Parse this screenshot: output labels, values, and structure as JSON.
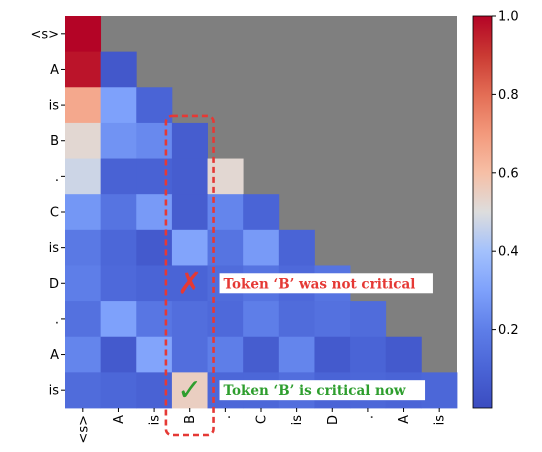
{
  "chart_data": {
    "type": "heatmap",
    "title": "",
    "xlabel": "",
    "ylabel": "",
    "tokens": [
      "<s>",
      "A",
      "is",
      "B",
      ".",
      "C",
      "is",
      "D",
      ".",
      "A",
      "is"
    ],
    "matrix": [
      [
        1.0
      ],
      [
        0.97,
        0.05
      ],
      [
        0.66,
        0.3,
        0.1
      ],
      [
        0.52,
        0.26,
        0.23,
        0.07
      ],
      [
        0.47,
        0.09,
        0.09,
        0.07,
        0.52
      ],
      [
        0.27,
        0.16,
        0.28,
        0.07,
        0.22,
        0.1
      ],
      [
        0.18,
        0.11,
        0.06,
        0.31,
        0.16,
        0.28,
        0.1
      ],
      [
        0.2,
        0.12,
        0.1,
        0.1,
        0.13,
        0.16,
        0.12,
        0.16
      ],
      [
        0.15,
        0.3,
        0.17,
        0.14,
        0.12,
        0.2,
        0.13,
        0.15,
        0.13
      ],
      [
        0.22,
        0.06,
        0.31,
        0.14,
        0.2,
        0.07,
        0.22,
        0.06,
        0.1,
        0.06
      ],
      [
        0.13,
        0.11,
        0.09,
        0.55,
        0.11,
        0.11,
        0.14,
        0.1,
        0.11,
        0.1,
        0.11
      ]
    ],
    "masked_color": "#7f7f7f",
    "colormap": "coolwarm",
    "vmin": 0.0,
    "vmax": 1.0,
    "colorbar_ticks": [
      0.2,
      0.4,
      0.6,
      0.8,
      1.0
    ],
    "highlight_column": "B",
    "annotations": [
      {
        "row": 7,
        "col": 3,
        "mark": "✗",
        "mark_color": "#e53935",
        "text": "Token ‘B’ was not critical",
        "text_color": "#e53935"
      },
      {
        "row": 10,
        "col": 3,
        "mark": "✓",
        "mark_color": "#2e9e2e",
        "text": "Token ‘B’ is critical now",
        "text_color": "#2e9e2e"
      }
    ],
    "grid": false
  }
}
